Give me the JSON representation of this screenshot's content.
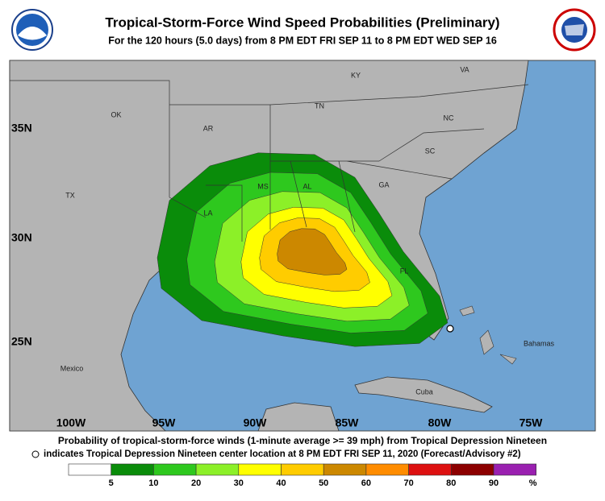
{
  "header": {
    "title": "Tropical-Storm-Force Wind Speed Probabilities (Preliminary)",
    "subtitle": "For the 120 hours (5.0 days) from 8 PM EDT FRI SEP 11 to 8 PM EDT WED SEP 16"
  },
  "map": {
    "latitude_labels": [
      "35N",
      "30N",
      "25N"
    ],
    "longitude_labels": [
      "100W",
      "95W",
      "90W",
      "85W",
      "80W",
      "75W"
    ],
    "places": [
      "OK",
      "AR",
      "TN",
      "KY",
      "VA",
      "NC",
      "SC",
      "GA",
      "AL",
      "MS",
      "LA",
      "TX",
      "FL",
      "Mexico",
      "Cuba",
      "Bahamas"
    ]
  },
  "footer": {
    "description": "Probability of tropical-storm-force winds (1-minute average >= 39 mph) from Tropical Depression Nineteen",
    "note": "indicates Tropical Depression Nineteen center location at 8 PM EDT FRI SEP 11, 2020 (Forecast/Advisory #2)"
  },
  "legend": {
    "colors": [
      "#ffffff",
      "#0a8c0a",
      "#2ec81e",
      "#8cf028",
      "#ffff00",
      "#ffcc00",
      "#cc8800",
      "#ff8c00",
      "#dd1010",
      "#8c0000",
      "#9a20b0"
    ],
    "labels": [
      "5",
      "10",
      "20",
      "30",
      "40",
      "50",
      "60",
      "70",
      "80",
      "90"
    ],
    "unit": "%"
  }
}
